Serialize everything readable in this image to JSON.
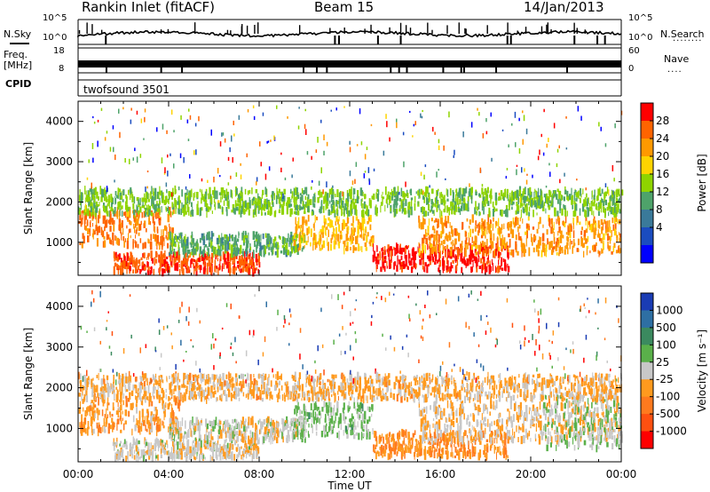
{
  "header": {
    "station": "Rankin Inlet (fitACF)",
    "beam": "Beam 15",
    "date": "14/Jan/2013"
  },
  "nsky_panel": {
    "left_label": "N.Sky",
    "left_ticks": [
      "10^5",
      "10^0"
    ],
    "right_ticks": [
      "10^5",
      "10^0"
    ],
    "right_label": "N.Search",
    "right_legend": "........"
  },
  "freq_panel": {
    "left_label_1": "Freq.",
    "left_label_2": "[MHz]",
    "left_ticks": [
      "18",
      "8"
    ],
    "right_ticks": [
      "60",
      "0"
    ],
    "right_label": "Nave",
    "right_legend": "...."
  },
  "cpid_panel": {
    "label": "CPID",
    "mode": "twofsound 3501"
  },
  "chart_data": [
    {
      "type": "heatmap",
      "title": "",
      "xlabel": "Time UT",
      "ylabel": "Slant Range [km]",
      "xlim": [
        "00:00",
        "24:00"
      ],
      "ylim": [
        180,
        4500
      ],
      "x_ticks": [
        "00:00",
        "04:00",
        "08:00",
        "12:00",
        "16:00",
        "20:00",
        "00:00"
      ],
      "y_ticks": [
        "1000",
        "2000",
        "3000",
        "4000"
      ],
      "colorbar": {
        "label": "Power [dB]",
        "ticks": [
          "28",
          "24",
          "20",
          "16",
          "12",
          "8",
          "4"
        ],
        "range": [
          0,
          30
        ],
        "colors": [
          "#ff0000",
          "#ff6400",
          "#ff9900",
          "#ffd400",
          "#8fd400",
          "#4ea36a",
          "#3a7a9a",
          "#1a4cc0",
          "#0000ff"
        ]
      },
      "bands": [
        {
          "t_start": 0.0,
          "t_end": 4.2,
          "r_min": 900,
          "r_max": 1800,
          "level": 24
        },
        {
          "t_start": 1.5,
          "t_end": 8.0,
          "r_min": 250,
          "r_max": 700,
          "level": 26
        },
        {
          "t_start": 4.0,
          "t_end": 10.0,
          "r_min": 700,
          "r_max": 1200,
          "level": 12
        },
        {
          "t_start": 9.5,
          "t_end": 13.0,
          "r_min": 800,
          "r_max": 1600,
          "level": 20
        },
        {
          "t_start": 13.0,
          "t_end": 19.0,
          "r_min": 300,
          "r_max": 900,
          "level": 28
        },
        {
          "t_start": 15.0,
          "t_end": 24.0,
          "r_min": 700,
          "r_max": 1600,
          "level": 22
        },
        {
          "t_start": 0.0,
          "t_end": 24.0,
          "r_min": 1700,
          "r_max": 2300,
          "level": 14
        }
      ]
    },
    {
      "type": "heatmap",
      "title": "",
      "xlabel": "Time UT",
      "ylabel": "Slant Range [km]",
      "xlim": [
        "00:00",
        "24:00"
      ],
      "ylim": [
        180,
        4500
      ],
      "x_ticks": [
        "00:00",
        "04:00",
        "08:00",
        "12:00",
        "16:00",
        "20:00",
        "00:00"
      ],
      "y_ticks": [
        "1000",
        "2000",
        "3000",
        "4000"
      ],
      "colorbar": {
        "label": "Velocity [m s⁻¹]",
        "ticks": [
          "1000",
          "500",
          "100",
          "25",
          "-25",
          "-100",
          "-500",
          "-1000"
        ],
        "range": [
          -1200,
          1200
        ],
        "colors": [
          "#1a3cb4",
          "#2e6fa3",
          "#3b8a5f",
          "#5ab04a",
          "#c8c8c8",
          "#ff9a1e",
          "#ff7a1e",
          "#ff5010",
          "#ff0000"
        ]
      },
      "bands": [
        {
          "t_start": 0.0,
          "t_end": 4.5,
          "r_min": 900,
          "r_max": 1800,
          "level": -300
        },
        {
          "t_start": 1.5,
          "t_end": 8.0,
          "r_min": 250,
          "r_max": 700,
          "level": -40
        },
        {
          "t_start": 4.0,
          "t_end": 10.0,
          "r_min": 700,
          "r_max": 1200,
          "level": -10
        },
        {
          "t_start": 9.5,
          "t_end": 13.0,
          "r_min": 800,
          "r_max": 1600,
          "level": 200
        },
        {
          "t_start": 13.0,
          "t_end": 19.0,
          "r_min": 300,
          "r_max": 900,
          "level": -400
        },
        {
          "t_start": 15.0,
          "t_end": 24.0,
          "r_min": 700,
          "r_max": 1600,
          "level": -150
        },
        {
          "t_start": 20.5,
          "t_end": 24.0,
          "r_min": 500,
          "r_max": 1800,
          "level": 150
        },
        {
          "t_start": 0.0,
          "t_end": 24.0,
          "r_min": 1700,
          "r_max": 2300,
          "level": -200
        }
      ]
    }
  ]
}
